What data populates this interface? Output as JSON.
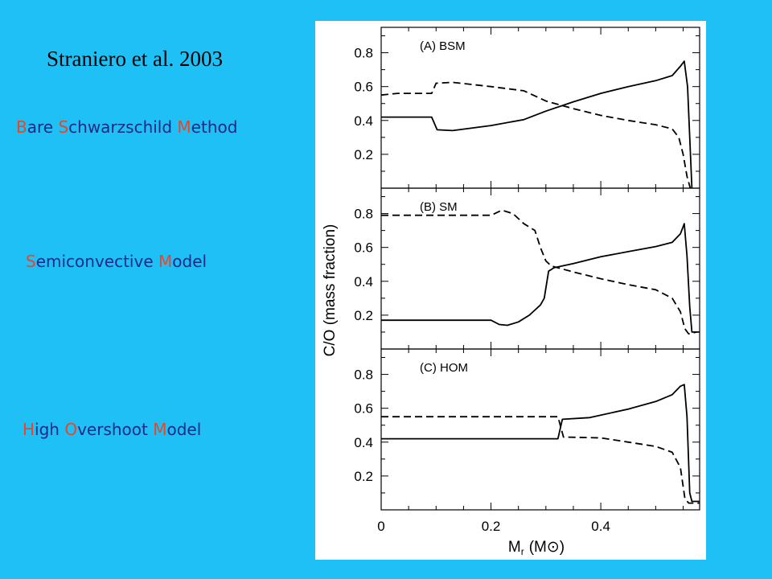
{
  "title": "Straniero et al. 2003",
  "models": [
    {
      "parts": [
        {
          "hl": "B",
          "rest": "are "
        },
        {
          "hl": "S",
          "rest": "chwarzschild "
        },
        {
          "hl": "M",
          "rest": "ethod"
        }
      ]
    },
    {
      "parts": [
        {
          "hl": "S",
          "rest": "emiconvective "
        },
        {
          "hl": "M",
          "rest": "odel"
        }
      ]
    },
    {
      "parts": [
        {
          "hl": "H",
          "rest": "igh  "
        },
        {
          "hl": "O",
          "rest": "vershoot "
        },
        {
          "hl": "M",
          "rest": "odel"
        }
      ]
    }
  ],
  "colors": {
    "background": "#1ec0f6",
    "highlight": "#e8462a",
    "text": "#1c2a86"
  },
  "chart_data": {
    "type": "line",
    "ylabel": "C/O (mass fraction)",
    "xlabel": "M",
    "xlabel_sub": "r",
    "xlabel_unit": "(M⊙)",
    "xlim": [
      0,
      0.58
    ],
    "ylim": [
      0,
      0.95
    ],
    "x_ticks": [
      "0",
      "0.2",
      "0.4"
    ],
    "y_ticks": [
      "0.2",
      "0.4",
      "0.6",
      "0.8"
    ],
    "panels": [
      {
        "label": "(A) BSM",
        "series": [
          {
            "style": "solid",
            "points": [
              [
                0,
                0.42
              ],
              [
                0.092,
                0.42
              ],
              [
                0.102,
                0.345
              ],
              [
                0.13,
                0.34
              ],
              [
                0.2,
                0.37
              ],
              [
                0.26,
                0.405
              ],
              [
                0.3,
                0.455
              ],
              [
                0.35,
                0.51
              ],
              [
                0.4,
                0.56
              ],
              [
                0.45,
                0.6
              ],
              [
                0.5,
                0.635
              ],
              [
                0.53,
                0.665
              ],
              [
                0.545,
                0.72
              ],
              [
                0.552,
                0.75
              ],
              [
                0.558,
                0.6
              ],
              [
                0.562,
                0.3
              ],
              [
                0.566,
                0.0
              ]
            ]
          },
          {
            "style": "dashed",
            "points": [
              [
                0,
                0.55
              ],
              [
                0.03,
                0.56
              ],
              [
                0.092,
                0.56
              ],
              [
                0.1,
                0.62
              ],
              [
                0.13,
                0.625
              ],
              [
                0.2,
                0.6
              ],
              [
                0.26,
                0.575
              ],
              [
                0.3,
                0.515
              ],
              [
                0.35,
                0.47
              ],
              [
                0.4,
                0.43
              ],
              [
                0.45,
                0.4
              ],
              [
                0.5,
                0.375
              ],
              [
                0.53,
                0.35
              ],
              [
                0.542,
                0.3
              ],
              [
                0.55,
                0.2
              ],
              [
                0.557,
                0.07
              ],
              [
                0.563,
                0.0
              ]
            ]
          }
        ]
      },
      {
        "label": "(B) SM",
        "series": [
          {
            "style": "solid",
            "points": [
              [
                0,
                0.17
              ],
              [
                0.2,
                0.17
              ],
              [
                0.215,
                0.145
              ],
              [
                0.23,
                0.14
              ],
              [
                0.25,
                0.16
              ],
              [
                0.27,
                0.2
              ],
              [
                0.29,
                0.26
              ],
              [
                0.297,
                0.3
              ],
              [
                0.305,
                0.46
              ],
              [
                0.315,
                0.48
              ],
              [
                0.35,
                0.505
              ],
              [
                0.4,
                0.545
              ],
              [
                0.45,
                0.575
              ],
              [
                0.5,
                0.605
              ],
              [
                0.53,
                0.63
              ],
              [
                0.545,
                0.68
              ],
              [
                0.552,
                0.74
              ],
              [
                0.557,
                0.55
              ],
              [
                0.562,
                0.25
              ],
              [
                0.566,
                0.1
              ],
              [
                0.58,
                0.1
              ]
            ]
          },
          {
            "style": "dashed",
            "points": [
              [
                0,
                0.79
              ],
              [
                0.2,
                0.79
              ],
              [
                0.22,
                0.82
              ],
              [
                0.24,
                0.8
              ],
              [
                0.26,
                0.74
              ],
              [
                0.28,
                0.7
              ],
              [
                0.29,
                0.6
              ],
              [
                0.3,
                0.52
              ],
              [
                0.31,
                0.49
              ],
              [
                0.35,
                0.455
              ],
              [
                0.4,
                0.415
              ],
              [
                0.45,
                0.38
              ],
              [
                0.5,
                0.35
              ],
              [
                0.53,
                0.3
              ],
              [
                0.545,
                0.22
              ],
              [
                0.553,
                0.12
              ],
              [
                0.56,
                0.09
              ],
              [
                0.575,
                0.1
              ]
            ]
          }
        ]
      },
      {
        "label": "(C) HOM",
        "series": [
          {
            "style": "solid",
            "points": [
              [
                0,
                0.42
              ],
              [
                0.322,
                0.42
              ],
              [
                0.33,
                0.535
              ],
              [
                0.38,
                0.545
              ],
              [
                0.45,
                0.595
              ],
              [
                0.5,
                0.64
              ],
              [
                0.53,
                0.68
              ],
              [
                0.545,
                0.73
              ],
              [
                0.552,
                0.74
              ],
              [
                0.557,
                0.55
              ],
              [
                0.562,
                0.1
              ],
              [
                0.566,
                0.05
              ],
              [
                0.58,
                0.05
              ]
            ]
          },
          {
            "style": "dashed",
            "points": [
              [
                0,
                0.55
              ],
              [
                0.322,
                0.55
              ],
              [
                0.332,
                0.43
              ],
              [
                0.4,
                0.425
              ],
              [
                0.45,
                0.4
              ],
              [
                0.5,
                0.375
              ],
              [
                0.53,
                0.34
              ],
              [
                0.545,
                0.25
              ],
              [
                0.553,
                0.07
              ],
              [
                0.56,
                0.04
              ],
              [
                0.58,
                0.04
              ]
            ]
          }
        ]
      }
    ]
  }
}
